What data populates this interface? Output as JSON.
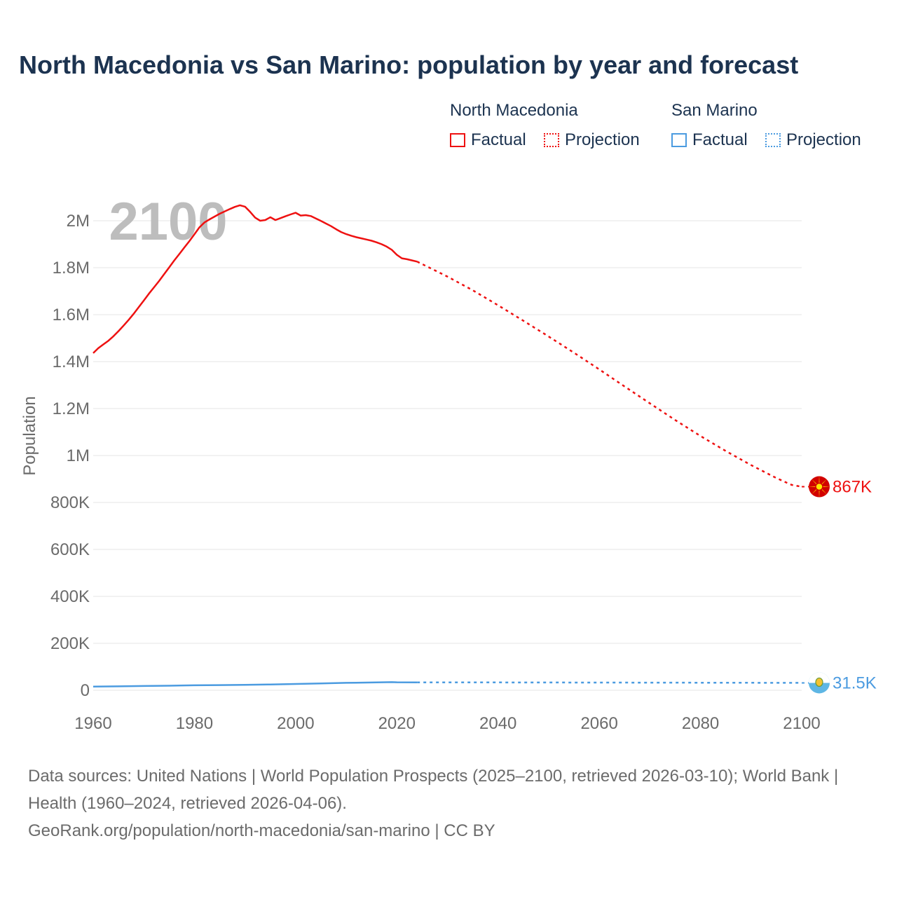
{
  "title": "North Macedonia vs San Marino: population by year and forecast",
  "legend": {
    "groups": [
      {
        "name": "North Macedonia",
        "color": "#ee1111",
        "factual_label": "Factual",
        "projection_label": "Projection"
      },
      {
        "name": "San Marino",
        "color": "#4b9be0",
        "factual_label": "Factual",
        "projection_label": "Projection"
      }
    ]
  },
  "source": {
    "line1": "Data sources: United Nations | World Population Prospects (2025–2100, retrieved 2026-03-10); World Bank | Health (1960–2024, retrieved 2026-04-06).",
    "line2": "GeoRank.org/population/north-macedonia/san-marino | CC BY"
  },
  "chart_data": {
    "type": "line",
    "title": "North Macedonia vs San Marino: population by year and forecast",
    "ylabel": "Population",
    "xlabel": "",
    "watermark_year": "2100",
    "xlim": [
      1960,
      2100
    ],
    "ylim": [
      0,
      2100000
    ],
    "xticks": [
      1960,
      1980,
      2000,
      2020,
      2040,
      2060,
      2080,
      2100
    ],
    "xtick_labels": [
      "1960",
      "1980",
      "2000",
      "2020",
      "2040",
      "2060",
      "2080",
      "2100"
    ],
    "yticks": [
      0,
      200000,
      400000,
      600000,
      800000,
      1000000,
      1200000,
      1400000,
      1600000,
      1800000,
      2000000
    ],
    "ytick_labels": [
      "0",
      "200K",
      "400K",
      "600K",
      "800K",
      "1M",
      "1.2M",
      "1.4M",
      "1.6M",
      "1.8M",
      "2M"
    ],
    "grid": true,
    "series": [
      {
        "name": "North Macedonia",
        "color": "#ee1111",
        "end_label": "867K",
        "factual": [
          [
            1960,
            1436000
          ],
          [
            1961,
            1457000
          ],
          [
            1962,
            1473000
          ],
          [
            1963,
            1489000
          ],
          [
            1964,
            1508000
          ],
          [
            1965,
            1530000
          ],
          [
            1966,
            1553000
          ],
          [
            1967,
            1578000
          ],
          [
            1968,
            1604000
          ],
          [
            1969,
            1632000
          ],
          [
            1970,
            1660000
          ],
          [
            1971,
            1689000
          ],
          [
            1972,
            1716000
          ],
          [
            1973,
            1743000
          ],
          [
            1974,
            1772000
          ],
          [
            1975,
            1801000
          ],
          [
            1976,
            1830000
          ],
          [
            1977,
            1858000
          ],
          [
            1978,
            1886000
          ],
          [
            1979,
            1913000
          ],
          [
            1980,
            1942000
          ],
          [
            1981,
            1972000
          ],
          [
            1982,
            1993000
          ],
          [
            1983,
            2006000
          ],
          [
            1984,
            2018000
          ],
          [
            1985,
            2030000
          ],
          [
            1986,
            2040000
          ],
          [
            1987,
            2050000
          ],
          [
            1988,
            2059000
          ],
          [
            1989,
            2066000
          ],
          [
            1990,
            2060000
          ],
          [
            1991,
            2038000
          ],
          [
            1992,
            2013000
          ],
          [
            1993,
            2000000
          ],
          [
            1994,
            2003000
          ],
          [
            1995,
            2015000
          ],
          [
            1996,
            2003000
          ],
          [
            1997,
            2011000
          ],
          [
            1998,
            2019000
          ],
          [
            1999,
            2027000
          ],
          [
            2000,
            2034000
          ],
          [
            2001,
            2022000
          ],
          [
            2002,
            2024000
          ],
          [
            2003,
            2020000
          ],
          [
            2004,
            2010000
          ],
          [
            2005,
            1999000
          ],
          [
            2006,
            1988000
          ],
          [
            2007,
            1977000
          ],
          [
            2008,
            1964000
          ],
          [
            2009,
            1952000
          ],
          [
            2010,
            1943000
          ],
          [
            2011,
            1936000
          ],
          [
            2012,
            1930000
          ],
          [
            2013,
            1925000
          ],
          [
            2014,
            1920000
          ],
          [
            2015,
            1915000
          ],
          [
            2016,
            1908000
          ],
          [
            2017,
            1900000
          ],
          [
            2018,
            1890000
          ],
          [
            2019,
            1876000
          ],
          [
            2020,
            1855000
          ],
          [
            2021,
            1840000
          ],
          [
            2022,
            1836000
          ],
          [
            2023,
            1831000
          ],
          [
            2024,
            1826000
          ]
        ],
        "projection": [
          [
            2024,
            1826000
          ],
          [
            2030,
            1762000
          ],
          [
            2035,
            1704000
          ],
          [
            2040,
            1640000
          ],
          [
            2045,
            1574000
          ],
          [
            2050,
            1507000
          ],
          [
            2055,
            1438000
          ],
          [
            2060,
            1367000
          ],
          [
            2065,
            1294000
          ],
          [
            2070,
            1222000
          ],
          [
            2075,
            1151000
          ],
          [
            2080,
            1083000
          ],
          [
            2085,
            1019000
          ],
          [
            2090,
            959000
          ],
          [
            2095,
            904000
          ],
          [
            2098,
            875000
          ],
          [
            2100,
            867000
          ]
        ]
      },
      {
        "name": "San Marino",
        "color": "#4b9be0",
        "end_label": "31.5K",
        "factual": [
          [
            1960,
            15400
          ],
          [
            1965,
            16800
          ],
          [
            1970,
            18300
          ],
          [
            1975,
            19500
          ],
          [
            1980,
            21300
          ],
          [
            1985,
            22200
          ],
          [
            1990,
            23100
          ],
          [
            1995,
            24900
          ],
          [
            2000,
            26900
          ],
          [
            2005,
            29200
          ],
          [
            2010,
            31600
          ],
          [
            2015,
            33000
          ],
          [
            2019,
            34500
          ],
          [
            2020,
            34000
          ],
          [
            2024,
            33600
          ]
        ],
        "projection": [
          [
            2024,
            33600
          ],
          [
            2040,
            33400
          ],
          [
            2060,
            32900
          ],
          [
            2080,
            32200
          ],
          [
            2100,
            31500
          ]
        ]
      }
    ]
  }
}
